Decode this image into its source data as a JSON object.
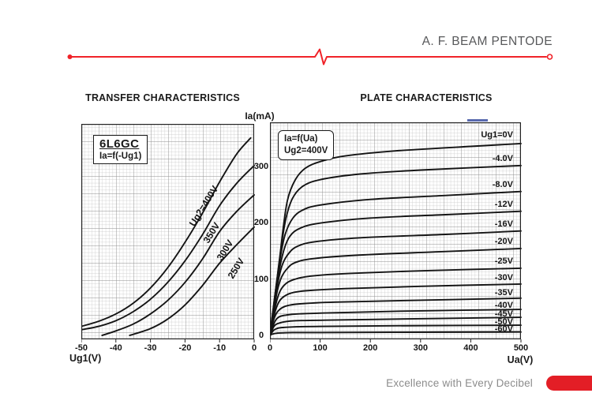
{
  "header": {
    "title": "A. F. BEAM PENTODE"
  },
  "footer": {
    "tagline": "Excellence with Every Decibel"
  },
  "shared": {
    "y_axis_label": "Ia(mA)"
  },
  "colors": {
    "accent_red": "#e31e26",
    "pulse_line_red": "#f02329",
    "title_gray": "#58595b",
    "tagline_gray": "#8c8c8c",
    "curve_black": "#141414",
    "grid_fine": "#c6c6c6",
    "grid_major": "#8f8f8f",
    "artifact_blue": "#3b4fa0"
  },
  "chart_data": [
    {
      "type": "line",
      "title": "TRANSFER CHARACTERISTICS",
      "annotation": [
        "6L6GC",
        "Ia=f(-Ug1)"
      ],
      "xlabel": "Ug1(V)",
      "ylabel": "Ia(mA)",
      "xlim": [
        -50,
        0
      ],
      "ylim": [
        0,
        375
      ],
      "xticks": [
        -50,
        -40,
        -30,
        -20,
        -10,
        0
      ],
      "yticks": [
        0,
        100,
        200,
        300
      ],
      "grid": "fine graph paper, majors every 5 cells",
      "legend_position": "labels rotated along curves",
      "series": [
        {
          "name": "Ug2=400V",
          "points": [
            [
              -50,
              16
            ],
            [
              -45,
              25
            ],
            [
              -40,
              38
            ],
            [
              -35,
              57
            ],
            [
              -30,
              84
            ],
            [
              -25,
              120
            ],
            [
              -20,
              165
            ],
            [
              -15,
              216
            ],
            [
              -10,
              272
            ],
            [
              -5,
              322
            ],
            [
              -1,
              350
            ]
          ]
        },
        {
          "name": "350V",
          "points": [
            [
              -50,
              10
            ],
            [
              -45,
              16
            ],
            [
              -40,
              26
            ],
            [
              -35,
              42
            ],
            [
              -30,
              64
            ],
            [
              -25,
              94
            ],
            [
              -20,
              132
            ],
            [
              -15,
              178
            ],
            [
              -10,
              230
            ],
            [
              -5,
              270
            ],
            [
              0,
              301
            ]
          ]
        },
        {
          "name": "300V",
          "points": [
            [
              -44,
              0
            ],
            [
              -40,
              8
            ],
            [
              -35,
              20
            ],
            [
              -30,
              38
            ],
            [
              -25,
              62
            ],
            [
              -20,
              94
            ],
            [
              -15,
              135
            ],
            [
              -10,
              184
            ],
            [
              -5,
              220
            ],
            [
              0,
              249
            ]
          ]
        },
        {
          "name": "250V",
          "points": [
            [
              -36,
              0
            ],
            [
              -30,
              12
            ],
            [
              -25,
              29
            ],
            [
              -20,
              54
            ],
            [
              -15,
              88
            ],
            [
              -10,
              128
            ],
            [
              -5,
              161
            ],
            [
              0,
              192
            ]
          ]
        }
      ]
    },
    {
      "type": "line",
      "title": "PLATE CHARACTERISTICS",
      "annotation": [
        "Ia=f(Ua)",
        "Ug2=400V"
      ],
      "xlabel": "Ua(V)",
      "ylabel": "Ia(mA)",
      "xlim": [
        0,
        500
      ],
      "ylim": [
        0,
        377
      ],
      "xticks": [
        0,
        100,
        200,
        300,
        400,
        500
      ],
      "yticks": [
        0,
        100,
        200,
        300
      ],
      "grid": "fine graph paper, majors every 5 cells",
      "legend_position": "labels right-aligned inside plot at right edge",
      "series": [
        {
          "name": "Ug1=0V",
          "points": [
            [
              0,
              0
            ],
            [
              15,
              100
            ],
            [
              25,
              180
            ],
            [
              35,
              240
            ],
            [
              50,
              275
            ],
            [
              70,
              296
            ],
            [
              100,
              308
            ],
            [
              150,
              318
            ],
            [
              250,
              327
            ],
            [
              400,
              335
            ],
            [
              500,
              340
            ]
          ]
        },
        {
          "name": "-4.0V",
          "points": [
            [
              0,
              0
            ],
            [
              12,
              85
            ],
            [
              22,
              155
            ],
            [
              32,
              208
            ],
            [
              45,
              243
            ],
            [
              65,
              264
            ],
            [
              100,
              276
            ],
            [
              180,
              286
            ],
            [
              300,
              293
            ],
            [
              500,
              301
            ]
          ]
        },
        {
          "name": "-8.0V",
          "points": [
            [
              0,
              0
            ],
            [
              10,
              72
            ],
            [
              20,
              135
            ],
            [
              30,
              178
            ],
            [
              45,
              207
            ],
            [
              65,
              222
            ],
            [
              100,
              231
            ],
            [
              200,
              241
            ],
            [
              350,
              248
            ],
            [
              500,
              255
            ]
          ]
        },
        {
          "name": "-12V",
          "points": [
            [
              0,
              0
            ],
            [
              10,
              64
            ],
            [
              18,
              113
            ],
            [
              28,
              152
            ],
            [
              40,
              176
            ],
            [
              60,
              190
            ],
            [
              100,
              199
            ],
            [
              200,
              208
            ],
            [
              350,
              214
            ],
            [
              500,
              220
            ]
          ]
        },
        {
          "name": "-16V",
          "points": [
            [
              0,
              0
            ],
            [
              8,
              54
            ],
            [
              16,
              95
            ],
            [
              25,
              126
            ],
            [
              38,
              146
            ],
            [
              55,
              158
            ],
            [
              90,
              166
            ],
            [
              180,
              173
            ],
            [
              350,
              179
            ],
            [
              500,
              185
            ]
          ]
        },
        {
          "name": "-20V",
          "points": [
            [
              0,
              0
            ],
            [
              8,
              46
            ],
            [
              15,
              80
            ],
            [
              23,
              103
            ],
            [
              35,
              119
            ],
            [
              50,
              129
            ],
            [
              85,
              136
            ],
            [
              170,
              142
            ],
            [
              330,
              148
            ],
            [
              500,
              154
            ]
          ]
        },
        {
          "name": "-25V",
          "points": [
            [
              0,
              0
            ],
            [
              7,
              37
            ],
            [
              14,
              63
            ],
            [
              21,
              80
            ],
            [
              32,
              92
            ],
            [
              48,
              99
            ],
            [
              80,
              105
            ],
            [
              160,
              110
            ],
            [
              320,
              115
            ],
            [
              500,
              119
            ]
          ]
        },
        {
          "name": "-30V",
          "points": [
            [
              0,
              0
            ],
            [
              6,
              28
            ],
            [
              12,
              47
            ],
            [
              19,
              61
            ],
            [
              28,
              69
            ],
            [
              42,
              75
            ],
            [
              70,
              79
            ],
            [
              150,
              83
            ],
            [
              300,
              87
            ],
            [
              500,
              91
            ]
          ]
        },
        {
          "name": "-35V",
          "points": [
            [
              0,
              0
            ],
            [
              5,
              20
            ],
            [
              10,
              34
            ],
            [
              16,
              43
            ],
            [
              24,
              49
            ],
            [
              36,
              53
            ],
            [
              60,
              56
            ],
            [
              130,
              59
            ],
            [
              280,
              62
            ],
            [
              500,
              66
            ]
          ]
        },
        {
          "name": "-40V",
          "points": [
            [
              0,
              0
            ],
            [
              5,
              14
            ],
            [
              9,
              23
            ],
            [
              14,
              30
            ],
            [
              21,
              34
            ],
            [
              32,
              36
            ],
            [
              55,
              38
            ],
            [
              120,
              40
            ],
            [
              260,
              43
            ],
            [
              500,
              46
            ]
          ]
        },
        {
          "name": "-45V",
          "points": [
            [
              0,
              0
            ],
            [
              4,
              9
            ],
            [
              8,
              16
            ],
            [
              13,
              20
            ],
            [
              19,
              22
            ],
            [
              29,
              24
            ],
            [
              50,
              26
            ],
            [
              110,
              27
            ],
            [
              250,
              29
            ],
            [
              500,
              32
            ]
          ]
        },
        {
          "name": "-50V",
          "points": [
            [
              0,
              0
            ],
            [
              4,
              5
            ],
            [
              7,
              9
            ],
            [
              11,
              11
            ],
            [
              17,
              13
            ],
            [
              26,
              14
            ],
            [
              45,
              15
            ],
            [
              100,
              16
            ],
            [
              240,
              17
            ],
            [
              500,
              18
            ]
          ]
        },
        {
          "name": "-60V",
          "points": [
            [
              0,
              0
            ],
            [
              3,
              1.5
            ],
            [
              6,
              2.5
            ],
            [
              10,
              3.5
            ],
            [
              15,
              4
            ],
            [
              25,
              4.5
            ],
            [
              45,
              5
            ],
            [
              100,
              5
            ],
            [
              240,
              5.5
            ],
            [
              500,
              6
            ]
          ]
        }
      ]
    }
  ]
}
